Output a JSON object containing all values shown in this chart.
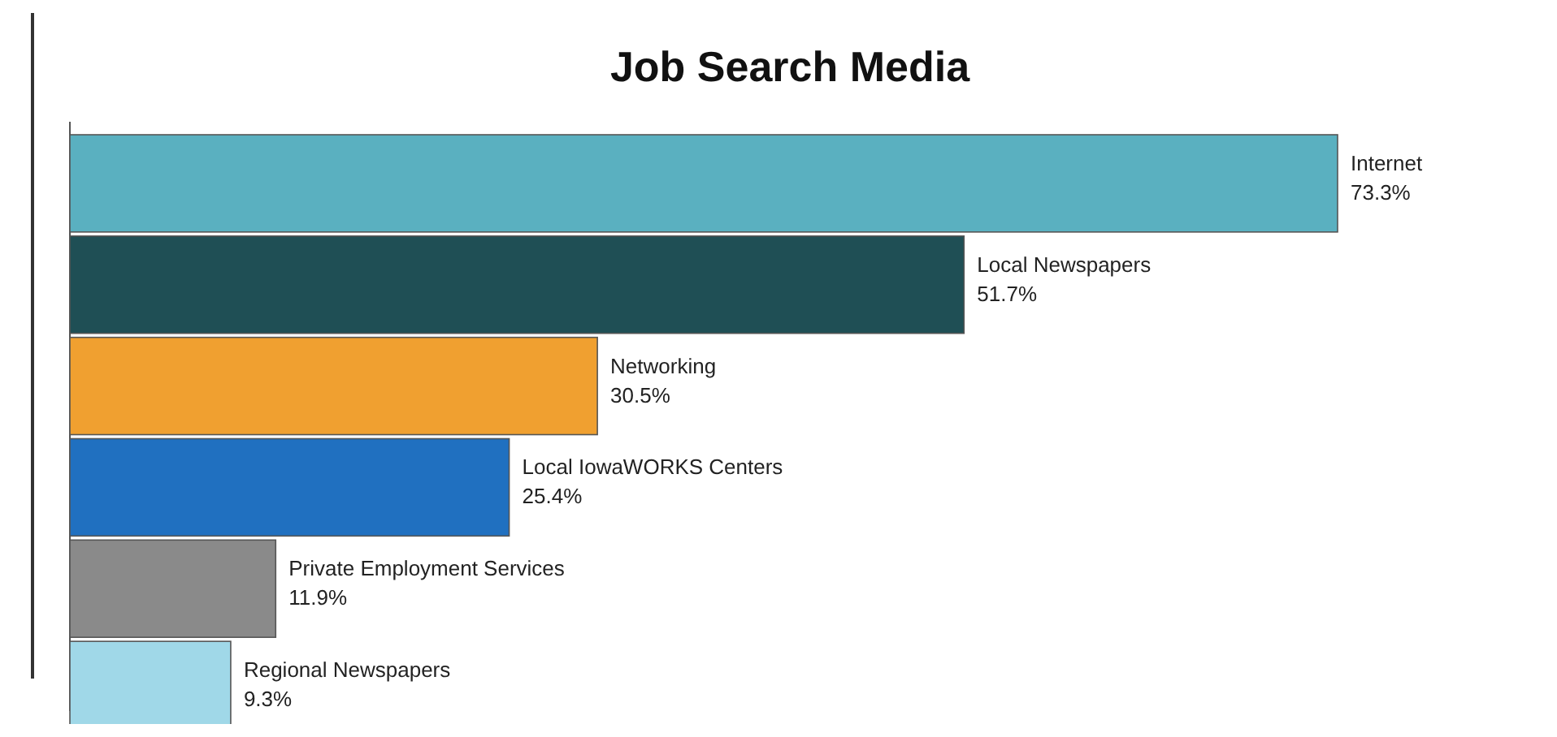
{
  "chart_data": {
    "type": "bar",
    "orientation": "horizontal",
    "title": "Job Search Media",
    "categories": [
      "Internet",
      "Local Newspapers",
      "Networking",
      "Local IowaWORKS Centers",
      "Private Employment Services",
      "Regional Newspapers"
    ],
    "values": [
      73.3,
      51.7,
      30.5,
      25.4,
      11.9,
      9.3
    ],
    "value_labels": [
      "73.3%",
      "51.7%",
      "30.5%",
      "25.4%",
      "11.9%",
      "9.3%"
    ],
    "colors": [
      "#5ab0c0",
      "#1f4f55",
      "#f0a030",
      "#2070c0",
      "#8a8a8a",
      "#a0d8e8"
    ]
  }
}
